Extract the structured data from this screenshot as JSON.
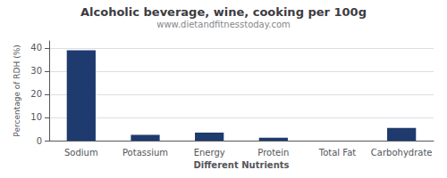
{
  "chart_data": {
    "type": "bar",
    "title": "Alcoholic beverage, wine, cooking per 100g",
    "subtitle": "www.dietandfitnesstoday.com",
    "xlabel": "Different Nutrients",
    "ylabel": "Percentage of RDH (%)",
    "categories": [
      "Sodium",
      "Potassium",
      "Energy",
      "Protein",
      "Total Fat",
      "Carbohydrate"
    ],
    "values": [
      39.0,
      2.5,
      3.5,
      1.2,
      0.0,
      5.5
    ],
    "color": "#1f3a6e",
    "ylim": [
      0,
      43
    ],
    "yticks": [
      0,
      10,
      20,
      30,
      40
    ],
    "grid": true
  }
}
